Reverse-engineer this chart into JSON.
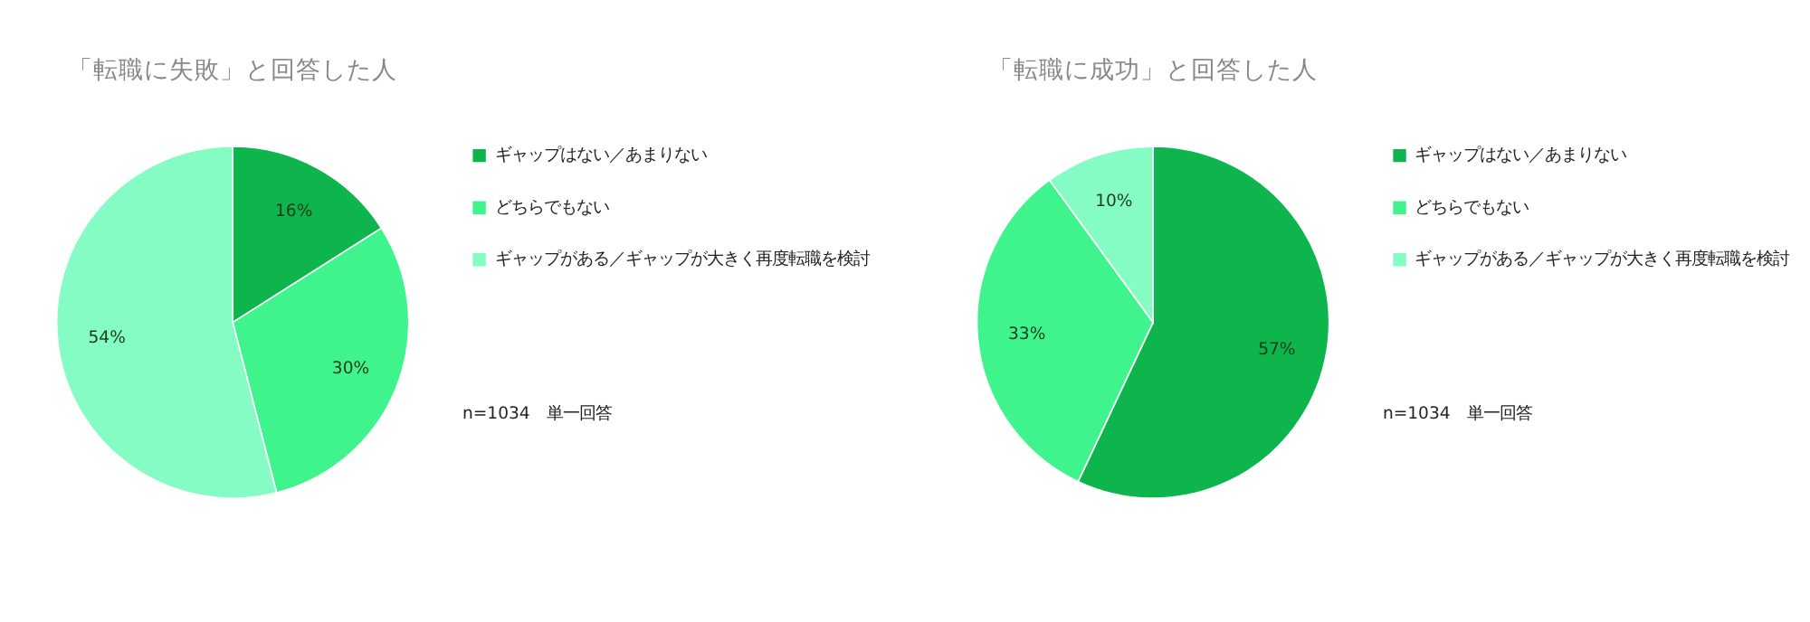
{
  "chart_data": [
    {
      "type": "pie",
      "title": "「転職に失敗」と回答した人",
      "categories": [
        "ギャップはない／あまりない",
        "どちらでもない",
        "ギャップがある／ギャップが大きく再度転職を検討"
      ],
      "values": [
        16,
        30,
        54
      ],
      "value_labels": [
        "16%",
        "30%",
        "54%"
      ],
      "colors": [
        "#0db54c",
        "#3ff48c",
        "#84fcc4"
      ],
      "legend": "right",
      "annotations": [
        "n=1034　単一回答"
      ]
    },
    {
      "type": "pie",
      "title": "「転職に成功」と回答した人",
      "categories": [
        "ギャップはない／あまりない",
        "どちらでもない",
        "ギャップがある／ギャップが大きく再度転職を検討"
      ],
      "values": [
        57,
        33,
        10
      ],
      "value_labels": [
        "57%",
        "33%",
        "10%"
      ],
      "colors": [
        "#0db54c",
        "#3ff48c",
        "#84fcc4"
      ],
      "legend": "right",
      "annotations": [
        "n=1034　単一回答"
      ]
    }
  ]
}
